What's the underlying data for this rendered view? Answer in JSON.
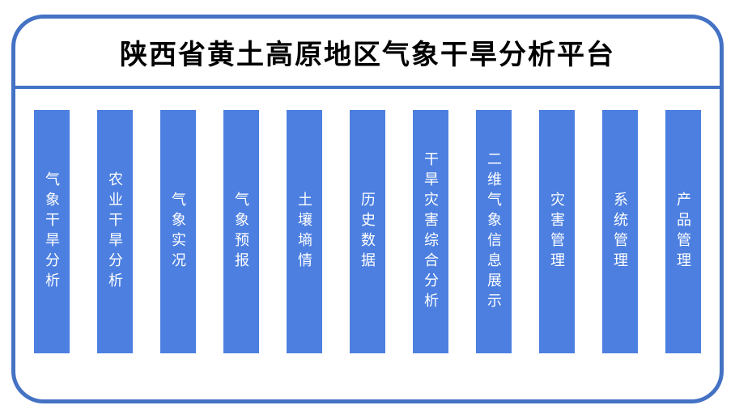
{
  "header": {
    "title": "陕西省黄土高原地区气象干旱分析平台"
  },
  "colors": {
    "frame_border": "#4472C4",
    "bar_fill": "#4C7FE0",
    "bar_text": "#FFFFFF",
    "title_text": "#000000"
  },
  "modules": [
    {
      "label": "气象干旱分析"
    },
    {
      "label": "农业干旱分析"
    },
    {
      "label": "气象实况"
    },
    {
      "label": "气象预报"
    },
    {
      "label": "土壤墒情"
    },
    {
      "label": "历史数据"
    },
    {
      "label": "干旱灾害综合分析"
    },
    {
      "label": "二维气象信息展示"
    },
    {
      "label": "灾害管理"
    },
    {
      "label": "系统管理"
    },
    {
      "label": "产品管理"
    }
  ]
}
